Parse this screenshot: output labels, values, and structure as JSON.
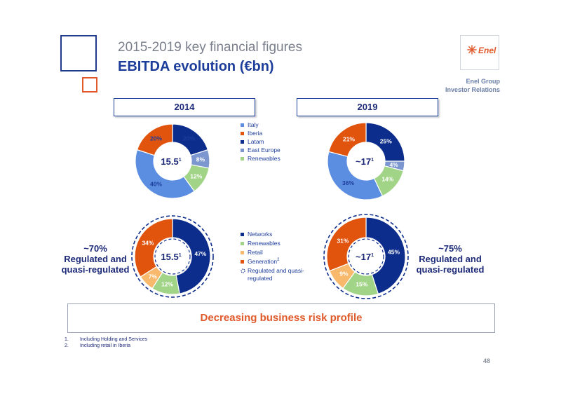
{
  "header": {
    "subtitle": "2015-2019 key financial figures",
    "title": "EBITDA evolution (€bn)",
    "logo_text": "Enel",
    "corp_line1": "Enel Group",
    "corp_line2": "Investor Relations"
  },
  "colors": {
    "italy": "#5b8ee0",
    "iberia": "#e0540e",
    "latam": "#0d2d8c",
    "east_europe": "#7c97cf",
    "renewables": "#a1d487",
    "networks": "#0d2d8c",
    "retail": "#f8b96c",
    "generation": "#e0540e"
  },
  "chart_data": [
    {
      "type": "pie",
      "title": "2014",
      "center_label": "15.5",
      "center_sup": "1",
      "categories": [
        "Italy",
        "Iberia",
        "Latam",
        "East Europe",
        "Renewables"
      ],
      "values": [
        40,
        20,
        20,
        8,
        12
      ],
      "labels": [
        "40%",
        "20%",
        "20%",
        "8%",
        "12%"
      ]
    },
    {
      "type": "pie",
      "title": "2019",
      "center_label": "~17",
      "center_sup": "1",
      "categories": [
        "Italy",
        "Iberia",
        "Latam",
        "East Europe",
        "Renewables"
      ],
      "values": [
        36,
        21,
        25,
        4,
        14
      ],
      "labels": [
        "36%",
        "21%",
        "25%",
        "4%",
        "14%"
      ]
    },
    {
      "type": "pie",
      "center_label": "15.5",
      "center_sup": "1",
      "categories": [
        "Networks",
        "Renewables",
        "Retail",
        "Generation"
      ],
      "values": [
        47,
        12,
        7,
        34
      ],
      "labels": [
        "47%",
        "12%",
        "7%",
        "34%"
      ],
      "regulated_share": "~70%"
    },
    {
      "type": "pie",
      "center_label": "~17",
      "center_sup": "1",
      "categories": [
        "Networks",
        "Renewables",
        "Retail",
        "Generation"
      ],
      "values": [
        45,
        15,
        9,
        31
      ],
      "labels": [
        "45%",
        "15%",
        "9%",
        "31%"
      ],
      "regulated_share": "~75%"
    }
  ],
  "legend_top": [
    {
      "label": "Italy",
      "color": "#5b8ee0"
    },
    {
      "label": "Iberia",
      "color": "#e0540e"
    },
    {
      "label": "Latam",
      "color": "#0d2d8c"
    },
    {
      "label": "East Europe",
      "color": "#7c97cf"
    },
    {
      "label": "Renewables",
      "color": "#a1d487"
    }
  ],
  "legend_bottom": {
    "networks": "Networks",
    "renewables": "Renewables",
    "retail": "Retail",
    "generation": "Generation",
    "generation_sup": "2",
    "regulated_line1": "Regulated and quasi-",
    "regulated_line2": "regulated"
  },
  "regulated_left": {
    "pct": "~70%",
    "line1": "Regulated and",
    "line2": "quasi-regulated"
  },
  "regulated_right": {
    "pct": "~75%",
    "line1": "Regulated and",
    "line2": "quasi-regulated"
  },
  "banner": "Decreasing business risk profile",
  "footnotes": [
    {
      "num": "1.",
      "text": "Including Holding and Services"
    },
    {
      "num": "2.",
      "text": "Including retail in Iberia"
    }
  ],
  "page_number": "48"
}
